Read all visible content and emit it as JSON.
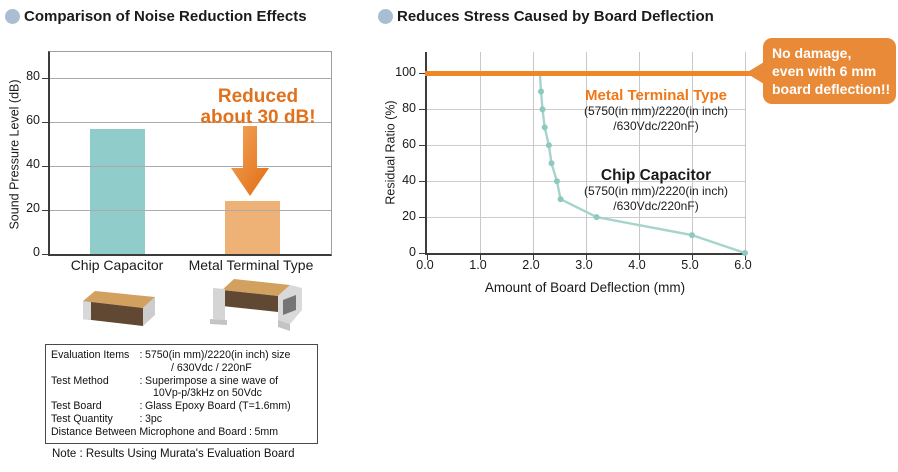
{
  "left_section": {
    "title": "Comparison of Noise Reduction Effects",
    "images": {
      "left": "chip-capacitor-photo",
      "right": "metal-terminal-type-photo"
    },
    "eval_box": {
      "separator": ":",
      "rows": [
        {
          "label": "Evaluation Items",
          "lines": [
            "5750(in mm)/2220(in inch) size",
            "/ 630Vdc / 220nF"
          ]
        },
        {
          "label": "Test Method",
          "lines": [
            "Superimpose a sine wave of",
            "10Vp-p/3kHz on 50Vdc"
          ]
        },
        {
          "label": "Test Board",
          "lines": [
            "Glass Epoxy Board (T=1.6mm)"
          ]
        },
        {
          "label": "Test Quantity",
          "lines": [
            "3pc"
          ]
        },
        {
          "label": "Distance Between Microphone and Board",
          "lines": [
            "5mm"
          ]
        }
      ]
    },
    "note": "Note : Results Using Murata's Evaluation Board"
  },
  "right_section": {
    "title": "Reduces Stress Caused by Board Deflection",
    "callout": {
      "lines": [
        "No damage,",
        "even with 6 mm",
        "board deflection!!"
      ]
    }
  },
  "colors": {
    "accent_orange": "#ef8727",
    "annotation_orange": "#e2711c",
    "legend_orange": "#f07818",
    "callout_orange": "#e98a38",
    "bar_teal": "#8fccca",
    "bar_orange": "#eeb277",
    "line_teal": "#a6d4cb",
    "bullet_blue": "#a9bed2"
  },
  "chart_data": [
    {
      "type": "bar",
      "title": "Comparison of Noise Reduction Effects",
      "xlabel": "",
      "ylabel": "Sound Pressure Level (dB)",
      "categories": [
        "Chip Capacitor",
        "Metal Terminal Type"
      ],
      "values": [
        57,
        24
      ],
      "colors": [
        "#8fccca",
        "#eeb277"
      ],
      "ylim": [
        0,
        92
      ],
      "yticks": [
        "0",
        "20",
        "40",
        "60",
        "80"
      ],
      "grid": "horizontal",
      "annotation": "Reduced about 30 dB!",
      "annotation_lines": [
        "Reduced",
        "about 30 dB!"
      ]
    },
    {
      "type": "line",
      "title": "Reduces Stress Caused by Board Deflection",
      "xlabel": "Amount of Board Deflection (mm)",
      "ylabel": "Residual Ratio (%)",
      "xlim": [
        0,
        6
      ],
      "ylim": [
        0,
        112
      ],
      "xticks": [
        "0.0",
        "1.0",
        "2.0",
        "3.0",
        "4.0",
        "5.0",
        "6.0"
      ],
      "yticks": [
        "0",
        "20",
        "40",
        "60",
        "80",
        "100"
      ],
      "grid": "both",
      "legend_position": "inside top-right",
      "series": [
        {
          "name": "Metal Terminal Type",
          "spec_lines": [
            "(5750(in mm)/2220(in inch)",
            "/630Vdc/220nF)"
          ],
          "color": "#ef8727",
          "points": [
            [
              0,
              100
            ],
            [
              6,
              100
            ]
          ]
        },
        {
          "name": "Chip Capacitor",
          "spec_lines": [
            "(5750(in mm)/2220(in inch)",
            "/630Vdc/220nF)"
          ],
          "color": "#a6d4cb",
          "marker_color": "#8fc8c0",
          "points": [
            [
              2.13,
              100
            ],
            [
              2.15,
              90
            ],
            [
              2.18,
              80
            ],
            [
              2.22,
              70
            ],
            [
              2.3,
              60
            ],
            [
              2.35,
              50
            ],
            [
              2.45,
              40
            ],
            [
              2.52,
              30
            ],
            [
              3.2,
              20
            ],
            [
              5.0,
              10
            ],
            [
              6.0,
              0
            ]
          ]
        }
      ]
    }
  ]
}
